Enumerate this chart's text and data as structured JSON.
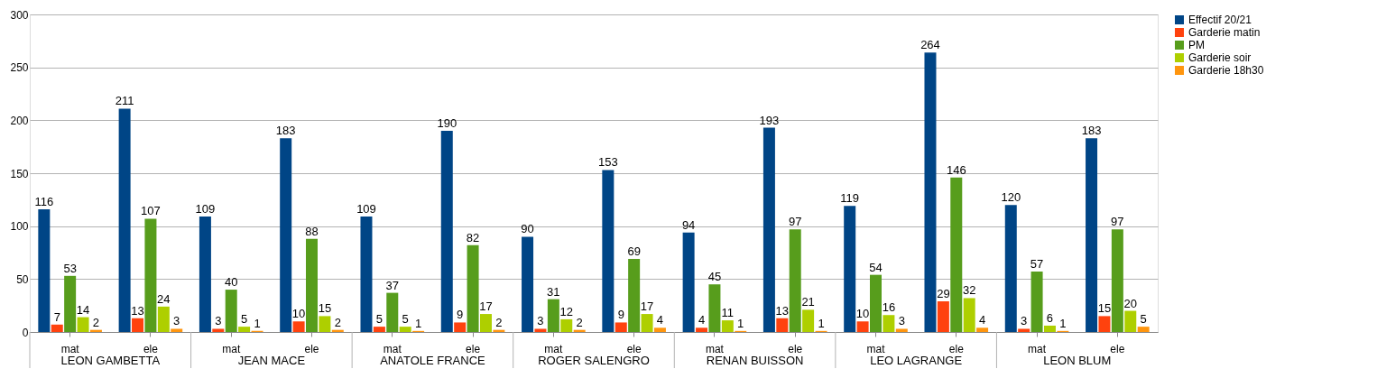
{
  "chart_data": {
    "type": "bar",
    "categories": [
      "mat",
      "ele",
      "mat",
      "ele",
      "mat",
      "ele",
      "mat",
      "ele",
      "mat",
      "ele",
      "mat",
      "ele",
      "mat",
      "ele"
    ],
    "series": [
      {
        "name": "Effectif 20/21",
        "color": "#004586",
        "values": [
          116,
          211,
          109,
          183,
          109,
          190,
          90,
          153,
          94,
          193,
          119,
          264,
          120,
          183
        ]
      },
      {
        "name": "Garderie matin",
        "color": "#ff420e",
        "values": [
          7,
          13,
          3,
          10,
          5,
          9,
          3,
          9,
          4,
          13,
          10,
          29,
          3,
          15
        ]
      },
      {
        "name": "PM",
        "color": "#579d1c",
        "values": [
          53,
          107,
          40,
          88,
          37,
          82,
          31,
          69,
          45,
          97,
          54,
          146,
          57,
          97
        ]
      },
      {
        "name": "Garderie soir",
        "color": "#aecf00",
        "values": [
          14,
          24,
          5,
          15,
          5,
          17,
          12,
          17,
          11,
          21,
          16,
          32,
          6,
          20
        ]
      },
      {
        "name": "Garderie 18h30",
        "color": "#ff950e",
        "values": [
          2,
          3,
          1,
          2,
          1,
          2,
          2,
          4,
          1,
          1,
          3,
          4,
          1,
          5
        ]
      }
    ],
    "annotations": [
      "LEON GAMBETTA",
      "JEAN MACE",
      "ANATOLE FRANCE",
      "ROGER SALENGRO",
      "RENAN BUISSON",
      "LEO LAGRANGE",
      "LEON BLUM"
    ],
    "ylim": [
      0,
      300
    ],
    "yticks": [
      0,
      50,
      100,
      150,
      200,
      250,
      300
    ],
    "grid": "y",
    "legend": "right",
    "data_labels": true
  }
}
